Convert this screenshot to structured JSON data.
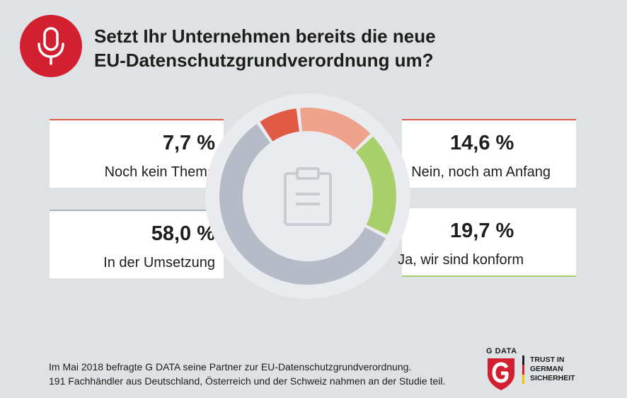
{
  "header": {
    "icon": "microphone-icon",
    "title": "Setzt Ihr Unternehmen bereits die neue\nEU-Datenschutzgrundverordnung um?"
  },
  "colors": {
    "brand_red": "#d32030",
    "noch_kein_thema": "#e05a45",
    "nein_noch_am_anfang": "#f0a38c",
    "ja_wir_sind_konform": "#a8cf6a",
    "in_der_umsetzung": "#b5bcc8"
  },
  "chart_data": {
    "type": "pie",
    "donut": true,
    "center_icon": "clipboard-icon",
    "series": [
      {
        "label": "Noch kein Thema",
        "value": 7.7,
        "display": "7,7 %"
      },
      {
        "label": "Nein, noch am Anfang",
        "value": 14.6,
        "display": "14,6 %"
      },
      {
        "label": "Ja, wir sind konform",
        "value": 19.7,
        "display": "19,7 %"
      },
      {
        "label": "In der Umsetzung",
        "value": 58.0,
        "display": "58,0 %"
      }
    ]
  },
  "footnote": "Im Mai 2018 befragte G DATA seine Partner zur EU-Datenschutzgrundverordnung.\n191 Fachhändler aus Deutschland, Österreich und der Schweiz nahmen an der Studie teil.",
  "logo": {
    "brand": "G DATA",
    "tagline": "TRUST IN\nGERMAN\nSICHERHEIT"
  }
}
